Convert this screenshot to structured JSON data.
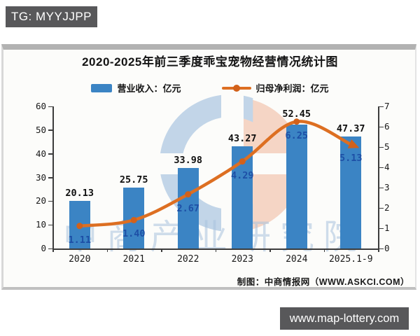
{
  "overlays": {
    "top_banner": {
      "text": "TG: MYYJJPP",
      "background": "#58585a"
    },
    "bottom_banner": {
      "text": "www.map-lottery.com",
      "background": "#58585a"
    }
  },
  "watermark": {
    "text": "中商产业研究院",
    "logo_colors": {
      "blue": "#b9cfe5",
      "salmon": "#f4cfbc"
    }
  },
  "chart_data": {
    "type": "bar",
    "title": "2020-2025年前三季度乖宝宠物经营情况统计图",
    "categories": [
      "2020",
      "2021",
      "2022",
      "2023",
      "2024",
      "2025.1-9"
    ],
    "series": [
      {
        "name": "营业收入：亿元",
        "type": "bar",
        "axis": "left",
        "color": "#3b84c4",
        "values": [
          20.13,
          25.75,
          33.98,
          43.27,
          52.45,
          47.37
        ]
      },
      {
        "name": "归母净利润：亿元",
        "type": "line",
        "axis": "right",
        "color": "#dd6f22",
        "marker_color": "#d2611a",
        "values": [
          1.11,
          1.4,
          2.67,
          4.29,
          6.25,
          5.13
        ]
      }
    ],
    "left_axis": {
      "min": 0,
      "max": 60,
      "step": 10
    },
    "right_axis": {
      "min": 0,
      "max": 7,
      "step": 1
    },
    "legend_position": "top",
    "grid": false,
    "value_label_colors": {
      "bar": "#101010",
      "line": "#1d4fa6"
    },
    "footer": "制图：中商情报网（WWW.ASKCI.COM）"
  }
}
